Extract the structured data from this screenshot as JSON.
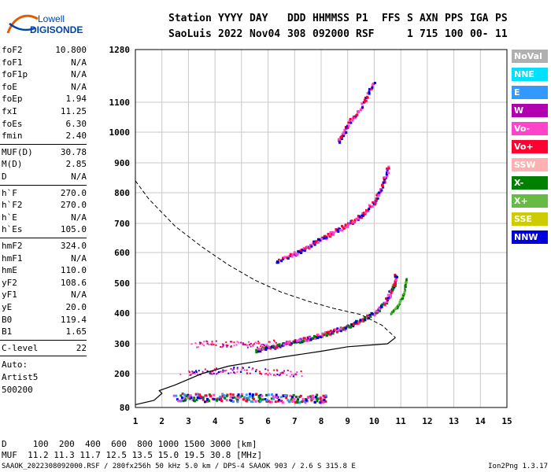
{
  "logo": {
    "line1": "Lowell",
    "line2": "DIGISONDE"
  },
  "header": {
    "labels": [
      "Station",
      "YYYY",
      "DAY",
      "DDD",
      "HHMMSS",
      "P1",
      "FFS",
      "S",
      "AXN",
      "PPS",
      "IGA",
      "PS"
    ],
    "values": [
      "SaoLuis",
      "2022",
      "Nov04",
      "308",
      "092000",
      "RSF",
      "1",
      "715",
      "100",
      "00-",
      "11"
    ]
  },
  "params": {
    "group1": [
      [
        "foF2",
        "10.800"
      ],
      [
        "foF1",
        "N/A"
      ],
      [
        "foF1p",
        "N/A"
      ],
      [
        "foE",
        "N/A"
      ],
      [
        "foEp",
        "1.94"
      ],
      [
        "fxI",
        "11.25"
      ],
      [
        "foEs",
        "6.30"
      ],
      [
        "fmin",
        "2.40"
      ]
    ],
    "group2": [
      [
        "MUF(D)",
        "30.78"
      ],
      [
        "M(D)",
        "2.85"
      ],
      [
        "D",
        "N/A"
      ]
    ],
    "group3": [
      [
        "h`F",
        "270.0"
      ],
      [
        "h`F2",
        "270.0"
      ],
      [
        "h`E",
        "N/A"
      ],
      [
        "h`Es",
        "105.0"
      ]
    ],
    "group4": [
      [
        "hmF2",
        "324.0"
      ],
      [
        "hmF1",
        "N/A"
      ],
      [
        "hmE",
        "110.0"
      ],
      [
        "yF2",
        "108.6"
      ],
      [
        "yF1",
        "N/A"
      ],
      [
        "yE",
        "20.0"
      ],
      [
        "B0",
        "119.4"
      ],
      [
        "B1",
        "1.65"
      ]
    ],
    "group5": [
      [
        "C-level",
        "22"
      ]
    ],
    "auto": [
      "Auto:",
      "Artist5",
      "500200"
    ]
  },
  "legend": [
    {
      "label": "NoVal",
      "color": "#b0b0b0"
    },
    {
      "label": "NNE",
      "color": "#00e0ff"
    },
    {
      "label": "E",
      "color": "#3399ff"
    },
    {
      "label": "W",
      "color": "#b000b0"
    },
    {
      "label": "Vo-",
      "color": "#ff44cc"
    },
    {
      "label": "Vo+",
      "color": "#ff0033"
    },
    {
      "label": "SSW",
      "color": "#ffb0b0"
    },
    {
      "label": "X-",
      "color": "#008000"
    },
    {
      "label": "X+",
      "color": "#66bb44"
    },
    {
      "label": "SSE",
      "color": "#cccc00"
    },
    {
      "label": "NNW",
      "color": "#0000dd"
    }
  ],
  "footer": {
    "d_row": "D     100  200  400  600  800 1000 1500 3000 [km]",
    "muf_row": "MUF  11.2 11.3 11.7 12.5 13.5 15.0 19.5 30.8 [MHz]",
    "file": "SAAOK_2022308092000.RSF / 280fx256h 50 kHz 5.0 km / DPS-4 SAAOK 903 / 2.6 S 315.8 E",
    "version": "Ion2Png 1.3.17"
  },
  "chart_data": {
    "type": "scatter",
    "x_ticks": [
      "1",
      "2",
      "3",
      "4",
      "5",
      "6",
      "7",
      "8",
      "9",
      "10",
      "11",
      "12",
      "13",
      "14",
      "15"
    ],
    "y_ticks": [
      "80",
      "200",
      "300",
      "400",
      "500",
      "600",
      "700",
      "800",
      "900",
      "1000",
      "1100",
      "1280"
    ],
    "xlim": [
      1,
      15
    ],
    "ylim": [
      80,
      1280
    ],
    "grid": true,
    "traces": [
      {
        "name": "F-trace O",
        "kind": "dense",
        "color_mix": [
          "#ff0033",
          "#0000dd",
          "#008000",
          "#ff44cc"
        ],
        "points": [
          [
            5.5,
            280
          ],
          [
            6.0,
            290
          ],
          [
            6.5,
            300
          ],
          [
            7.0,
            310
          ],
          [
            7.5,
            320
          ],
          [
            8.0,
            330
          ],
          [
            8.5,
            345
          ],
          [
            9.0,
            360
          ],
          [
            9.5,
            380
          ],
          [
            10.0,
            405
          ],
          [
            10.4,
            440
          ],
          [
            10.7,
            490
          ],
          [
            10.8,
            530
          ]
        ]
      },
      {
        "name": "F-trace X",
        "kind": "thin",
        "color_mix": [
          "#66bb44",
          "#008000"
        ],
        "points": [
          [
            10.6,
            400
          ],
          [
            10.9,
            430
          ],
          [
            11.1,
            470
          ],
          [
            11.2,
            520
          ]
        ]
      },
      {
        "name": "2F trace",
        "kind": "dense",
        "color_mix": [
          "#ff44cc",
          "#0000dd",
          "#ff0033"
        ],
        "points": [
          [
            6.3,
            575
          ],
          [
            7.0,
            600
          ],
          [
            7.5,
            625
          ],
          [
            8.0,
            650
          ],
          [
            8.5,
            675
          ],
          [
            9.0,
            700
          ],
          [
            9.5,
            730
          ],
          [
            10.0,
            775
          ],
          [
            10.3,
            830
          ],
          [
            10.5,
            890
          ]
        ]
      },
      {
        "name": "3F trace",
        "kind": "dense",
        "color_mix": [
          "#ff44cc",
          "#0000dd",
          "#ff0033"
        ],
        "points": [
          [
            8.6,
            970
          ],
          [
            9.0,
            1030
          ],
          [
            9.5,
            1090
          ],
          [
            10.0,
            1175
          ]
        ]
      },
      {
        "name": "Es trace",
        "kind": "band",
        "color_mix": [
          "#ff0033",
          "#0000dd",
          "#ff44cc",
          "#3399ff",
          "#008000"
        ],
        "points": [
          [
            2.5,
            120
          ],
          [
            3.5,
            118
          ],
          [
            4.5,
            118
          ],
          [
            5.5,
            118
          ],
          [
            6.5,
            115
          ],
          [
            7.5,
            115
          ],
          [
            8.2,
            115
          ]
        ]
      },
      {
        "name": "Es scatter 200",
        "kind": "scatter",
        "color_mix": [
          "#ff0033",
          "#0000dd",
          "#ff44cc",
          "#b000b0"
        ],
        "points": [
          [
            2.8,
            205
          ],
          [
            3.5,
            210
          ],
          [
            4.2,
            212
          ],
          [
            5.0,
            215
          ],
          [
            5.8,
            210
          ],
          [
            6.5,
            205
          ],
          [
            7.2,
            200
          ]
        ]
      },
      {
        "name": "Es scatter 300",
        "kind": "scatter",
        "color_mix": [
          "#ff44cc",
          "#b000b0",
          "#ff0033"
        ],
        "points": [
          [
            3.2,
            300
          ],
          [
            4.0,
            302
          ],
          [
            4.8,
            300
          ],
          [
            5.5,
            300
          ],
          [
            6.2,
            305
          ]
        ]
      }
    ],
    "profile": [
      [
        1.0,
        840
      ],
      [
        1.5,
        780
      ],
      [
        2.5,
        690
      ],
      [
        3.5,
        620
      ],
      [
        4.5,
        560
      ],
      [
        5.5,
        510
      ],
      [
        6.5,
        470
      ],
      [
        7.5,
        440
      ],
      [
        8.5,
        415
      ],
      [
        9.5,
        395
      ],
      [
        10.3,
        360
      ],
      [
        10.8,
        320
      ],
      [
        10.5,
        300
      ],
      [
        9.0,
        290
      ],
      [
        8.0,
        275
      ],
      [
        6.5,
        255
      ],
      [
        5.5,
        240
      ],
      [
        4.5,
        225
      ],
      [
        3.5,
        200
      ],
      [
        2.5,
        160
      ],
      [
        1.9,
        140
      ],
      [
        2.0,
        130
      ],
      [
        1.7,
        105
      ],
      [
        1.0,
        90
      ]
    ]
  }
}
